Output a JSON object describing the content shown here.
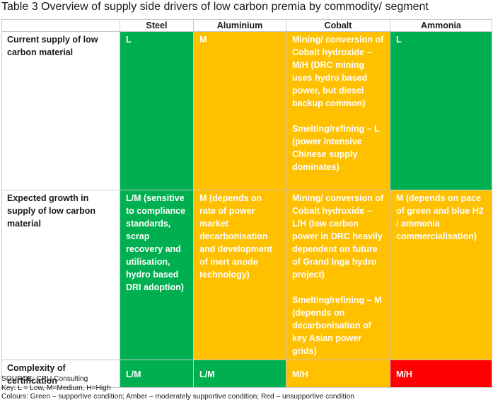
{
  "caption": "Table 3 Overview of supply side drivers of low carbon premia by commodity/ segment",
  "headers": [
    "",
    "Steel",
    "Aluminium",
    "Cobalt",
    "Ammonia"
  ],
  "rows": [
    {
      "label": "Current supply of low carbon material",
      "cells": [
        {
          "text": "L",
          "color": "green"
        },
        {
          "text": "M",
          "color": "amber"
        },
        {
          "text": "Mining/ conversion of Cobalt hydroxide – M/H (DRC mining uses hydro based power, but diesel backup common)",
          "text2": "Smelting/refining – L (power intensive Chinese supply dominates)",
          "color": "amber"
        },
        {
          "text": "L",
          "color": "green"
        }
      ]
    },
    {
      "label": "Expected growth in supply of low carbon material",
      "cells": [
        {
          "text": "L/M (sensitive to compliance standards, scrap recovery and utilisation, hydro based DRI adoption)",
          "color": "green"
        },
        {
          "text": "M (depends on rate of power market decarbonisation and development of inert anode technology)",
          "color": "amber"
        },
        {
          "text": "Mining/ conversion of Cobalt hydroxide – L/H (low carbon power in DRC heavily dependent on future of Grand Inga hydro project)",
          "text2": "Smelting/refining – M (depends on decarbonisation of key Asian power grids)",
          "color": "amber"
        },
        {
          "text": "M (depends on pace of green and blue H2 / ammonia commercialisation)",
          "color": "amber"
        }
      ]
    },
    {
      "label": "Complexity of certification",
      "cells": [
        {
          "text": "L/M",
          "color": "green"
        },
        {
          "text": "L/M",
          "color": "green"
        },
        {
          "text": "M/H",
          "color": "amber"
        },
        {
          "text": "M/H",
          "color": "red"
        }
      ]
    }
  ],
  "footer": {
    "source": "SOURCE: CRU Consulting",
    "key": "Key: L = Low, M=Medium, H=High",
    "colours": "Colours: Green – supportive condition; Amber – moderately supportive condition; Red – unsupportive condition"
  },
  "colors": {
    "green": "#00b050",
    "amber": "#ffc000",
    "red": "#ff0000"
  }
}
